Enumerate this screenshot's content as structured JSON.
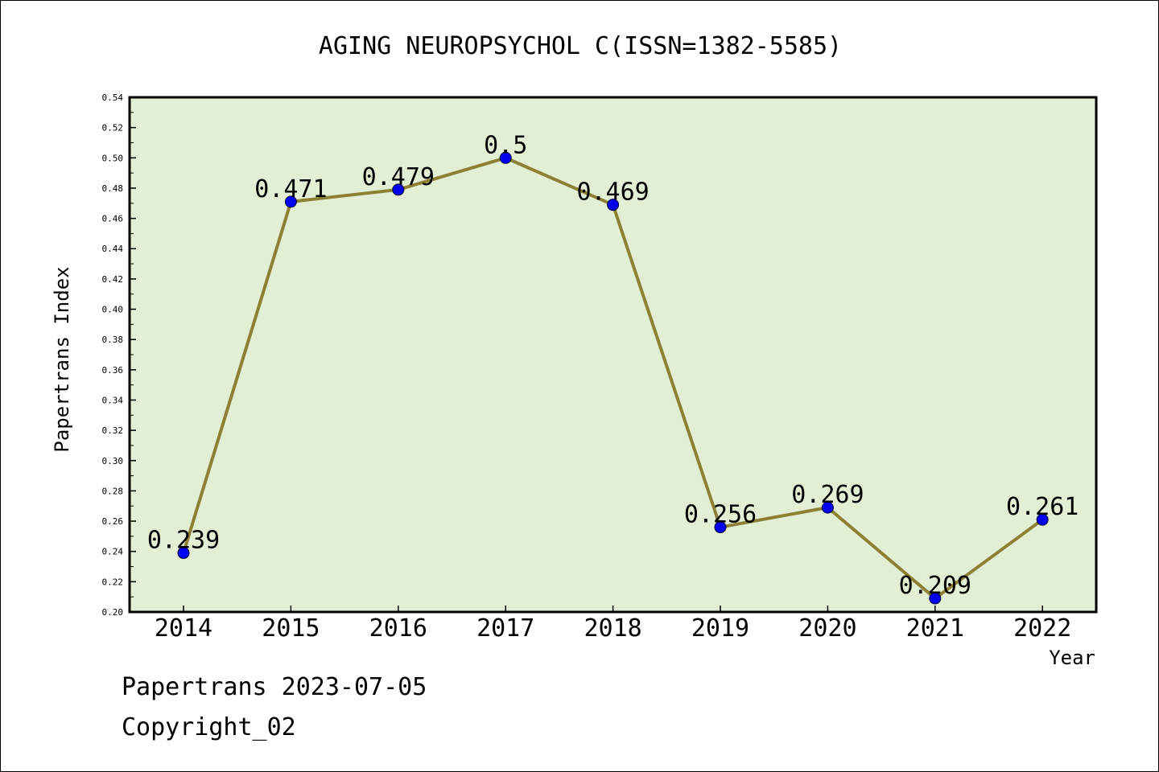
{
  "chart_data": {
    "type": "line",
    "title": "AGING NEUROPSYCHOL C(ISSN=1382-5585)",
    "xlabel": "Year",
    "ylabel": "Papertrans Index",
    "x": [
      "2014",
      "2015",
      "2016",
      "2017",
      "2018",
      "2019",
      "2020",
      "2021",
      "2022"
    ],
    "values": [
      0.239,
      0.471,
      0.479,
      0.5,
      0.469,
      0.256,
      0.269,
      0.209,
      0.261
    ],
    "data_labels": [
      "0.239",
      "0.471",
      "0.479",
      "0.5",
      "0.469",
      "0.256",
      "0.269",
      "0.209",
      "0.261"
    ],
    "ylim": [
      0.2,
      0.54
    ],
    "yticks": [
      "0.20",
      "0.22",
      "0.24",
      "0.26",
      "0.28",
      "0.30",
      "0.32",
      "0.34",
      "0.36",
      "0.38",
      "0.40",
      "0.42",
      "0.44",
      "0.46",
      "0.48",
      "0.50",
      "0.52",
      "0.54"
    ],
    "grid": false,
    "colors": {
      "plot_background": "#e2efd5",
      "line": "#8b8033",
      "marker": "#0000ee"
    }
  },
  "footer": {
    "line1": "Papertrans 2023-07-05",
    "line2": "Copyright_02"
  }
}
